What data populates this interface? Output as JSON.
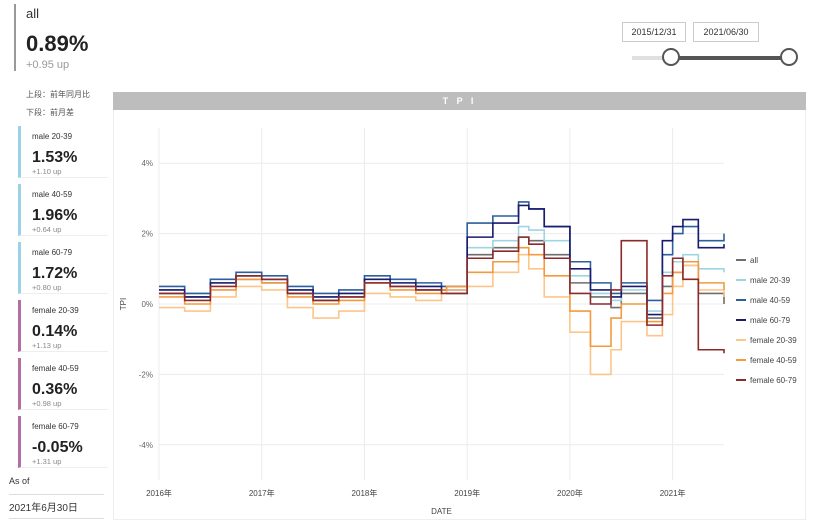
{
  "summary": {
    "name": "all",
    "value": "0.89%",
    "delta": "+0.95 up"
  },
  "legend_note": {
    "line1": "上段：前年同月比",
    "line2": "下段：前月差"
  },
  "cards": [
    {
      "name": "male 20-39",
      "value": "1.53%",
      "delta": "+1.10 up",
      "group": "male"
    },
    {
      "name": "male 40-59",
      "value": "1.96%",
      "delta": "+0.64 up",
      "group": "male"
    },
    {
      "name": "male 60-79",
      "value": "1.72%",
      "delta": "+0.80 up",
      "group": "male"
    },
    {
      "name": "female 20-39",
      "value": "0.14%",
      "delta": "+1.13 up",
      "group": "female"
    },
    {
      "name": "female 40-59",
      "value": "0.36%",
      "delta": "+0.98 up",
      "group": "female"
    },
    {
      "name": "female 60-79",
      "value": "-0.05%",
      "delta": "+1.31 up",
      "group": "female"
    }
  ],
  "as_of": {
    "label": "As of",
    "date": "2021年6月30日"
  },
  "date_range": {
    "start": "2015/12/31",
    "end": "2021/06/30"
  },
  "chart_data": {
    "type": "line",
    "title": "T P I",
    "xlabel": "DATE",
    "ylabel": "TPI",
    "ylim": [
      -5,
      5
    ],
    "yticks": [
      4,
      2,
      0,
      -2,
      -4
    ],
    "ytick_labels": [
      "4%",
      "2%",
      "0%",
      "-2%",
      "-4%"
    ],
    "xlim": [
      2016.0,
      2021.5
    ],
    "xticks": [
      2016,
      2017,
      2018,
      2019,
      2020,
      2021
    ],
    "xtick_labels": [
      "2016年",
      "2017年",
      "2018年",
      "2019年",
      "2020年",
      "2021年"
    ],
    "legend_position": "right",
    "grid": true,
    "series": [
      {
        "name": "all",
        "color": "#6e6e6e",
        "x": [
          2016.0,
          2016.25,
          2016.5,
          2016.75,
          2017.0,
          2017.25,
          2017.5,
          2017.75,
          2018.0,
          2018.25,
          2018.5,
          2018.75,
          2018.8,
          2019.0,
          2019.25,
          2019.5,
          2019.6,
          2019.75,
          2020.0,
          2020.2,
          2020.4,
          2020.5,
          2020.75,
          2020.9,
          2021.0,
          2021.1,
          2021.25,
          2021.5
        ],
        "values": [
          0.3,
          0.2,
          0.6,
          0.7,
          0.6,
          0.3,
          0.1,
          0.2,
          0.6,
          0.5,
          0.4,
          0.4,
          0.3,
          1.4,
          1.6,
          1.9,
          1.8,
          1.4,
          0.6,
          0.2,
          -0.1,
          0.3,
          -0.4,
          0.5,
          0.9,
          1.1,
          0.3,
          0.0
        ]
      },
      {
        "name": "male 20-39",
        "color": "#9fd5e3",
        "x": [
          2016.0,
          2016.25,
          2016.5,
          2016.75,
          2017.0,
          2017.25,
          2017.5,
          2017.75,
          2018.0,
          2018.25,
          2018.5,
          2018.75,
          2018.8,
          2019.0,
          2019.25,
          2019.5,
          2019.6,
          2019.75,
          2020.0,
          2020.2,
          2020.4,
          2020.5,
          2020.75,
          2020.9,
          2021.0,
          2021.1,
          2021.25,
          2021.5
        ],
        "values": [
          0.4,
          0.3,
          0.6,
          0.8,
          0.7,
          0.4,
          0.2,
          0.3,
          0.7,
          0.6,
          0.5,
          0.5,
          0.4,
          1.6,
          1.8,
          2.2,
          2.1,
          1.8,
          0.8,
          0.3,
          0.1,
          0.4,
          -0.2,
          0.9,
          1.2,
          1.4,
          1.0,
          0.9
        ]
      },
      {
        "name": "male 40-59",
        "color": "#2c5f9e",
        "x": [
          2016.0,
          2016.25,
          2016.5,
          2016.75,
          2017.0,
          2017.25,
          2017.5,
          2017.75,
          2018.0,
          2018.25,
          2018.5,
          2018.75,
          2018.8,
          2019.0,
          2019.25,
          2019.5,
          2019.6,
          2019.75,
          2020.0,
          2020.2,
          2020.4,
          2020.5,
          2020.75,
          2020.9,
          2021.0,
          2021.1,
          2021.25,
          2021.5
        ],
        "values": [
          0.5,
          0.3,
          0.7,
          0.9,
          0.8,
          0.5,
          0.3,
          0.4,
          0.8,
          0.7,
          0.6,
          0.5,
          0.5,
          2.3,
          2.5,
          2.9,
          2.7,
          2.2,
          1.2,
          0.6,
          0.3,
          0.6,
          0.1,
          1.4,
          2.0,
          2.2,
          1.8,
          2.0
        ]
      },
      {
        "name": "male 60-79",
        "color": "#1a1a6e",
        "x": [
          2016.0,
          2016.25,
          2016.5,
          2016.75,
          2017.0,
          2017.25,
          2017.5,
          2017.75,
          2018.0,
          2018.25,
          2018.5,
          2018.75,
          2018.8,
          2019.0,
          2019.25,
          2019.5,
          2019.6,
          2019.75,
          2020.0,
          2020.2,
          2020.4,
          2020.5,
          2020.75,
          2020.9,
          2021.0,
          2021.1,
          2021.25,
          2021.5
        ],
        "values": [
          0.4,
          0.2,
          0.6,
          0.8,
          0.7,
          0.4,
          0.2,
          0.3,
          0.7,
          0.6,
          0.5,
          0.4,
          0.4,
          1.9,
          2.3,
          2.8,
          2.7,
          2.2,
          1.0,
          0.4,
          0.2,
          0.5,
          -0.3,
          1.8,
          2.2,
          2.4,
          1.6,
          1.7
        ]
      },
      {
        "name": "female 20-39",
        "color": "#fcc68a",
        "x": [
          2016.0,
          2016.25,
          2016.5,
          2016.75,
          2017.0,
          2017.25,
          2017.5,
          2017.75,
          2018.0,
          2018.25,
          2018.5,
          2018.75,
          2018.8,
          2019.0,
          2019.25,
          2019.5,
          2019.6,
          2019.75,
          2020.0,
          2020.2,
          2020.4,
          2020.5,
          2020.75,
          2020.9,
          2021.0,
          2021.1,
          2021.25,
          2021.5
        ],
        "values": [
          -0.1,
          -0.2,
          0.2,
          0.5,
          0.4,
          -0.1,
          -0.4,
          -0.2,
          0.3,
          0.2,
          0.1,
          0.3,
          0.4,
          0.5,
          0.9,
          1.4,
          1.0,
          0.2,
          -0.8,
          -2.0,
          -1.3,
          -0.5,
          -0.9,
          -0.3,
          0.5,
          1.1,
          0.4,
          0.2
        ]
      },
      {
        "name": "female 40-59",
        "color": "#f39a3e",
        "x": [
          2016.0,
          2016.25,
          2016.5,
          2016.75,
          2017.0,
          2017.25,
          2017.5,
          2017.75,
          2018.0,
          2018.25,
          2018.5,
          2018.75,
          2018.8,
          2019.0,
          2019.25,
          2019.5,
          2019.6,
          2019.75,
          2020.0,
          2020.2,
          2020.4,
          2020.5,
          2020.75,
          2020.9,
          2021.0,
          2021.1,
          2021.25,
          2021.5
        ],
        "values": [
          0.2,
          0.0,
          0.4,
          0.7,
          0.6,
          0.2,
          0.0,
          0.1,
          0.6,
          0.4,
          0.3,
          0.4,
          0.5,
          0.9,
          1.2,
          1.6,
          1.4,
          0.8,
          -0.2,
          -1.2,
          -0.4,
          0.0,
          -0.5,
          0.3,
          0.9,
          1.2,
          0.6,
          0.4
        ]
      },
      {
        "name": "female 60-79",
        "color": "#8b2a2a",
        "x": [
          2016.0,
          2016.25,
          2016.5,
          2016.75,
          2017.0,
          2017.25,
          2017.5,
          2017.75,
          2018.0,
          2018.25,
          2018.5,
          2018.75,
          2018.8,
          2019.0,
          2019.25,
          2019.5,
          2019.6,
          2019.75,
          2020.0,
          2020.2,
          2020.4,
          2020.5,
          2020.75,
          2020.9,
          2021.0,
          2021.1,
          2021.25,
          2021.5
        ],
        "values": [
          0.3,
          0.1,
          0.5,
          0.8,
          0.7,
          0.3,
          0.1,
          0.2,
          0.6,
          0.5,
          0.4,
          0.3,
          0.3,
          1.3,
          1.5,
          1.9,
          1.7,
          1.3,
          0.3,
          0.0,
          0.4,
          1.8,
          -0.6,
          0.8,
          1.3,
          0.7,
          -1.3,
          -1.4
        ]
      }
    ]
  }
}
